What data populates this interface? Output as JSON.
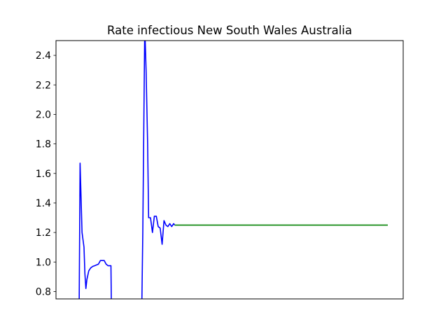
{
  "chart_data": {
    "type": "line",
    "title": "Rate infectious New South Wales Australia",
    "xlabel": "",
    "ylabel": "",
    "ylim": [
      0.75,
      2.5
    ],
    "xlim": [
      0,
      180
    ],
    "yticks": [
      0.8,
      1.0,
      1.2,
      1.4,
      1.6,
      1.8,
      2.0,
      2.2,
      2.4
    ],
    "ytick_labels": [
      "0.8",
      "1.0",
      "1.2",
      "1.4",
      "1.6",
      "1.8",
      "2.0",
      "2.2",
      "2.4"
    ],
    "grid": false,
    "series": [
      {
        "color": "#0000ff",
        "points": [
          [
            12,
            0.7
          ],
          [
            12.5,
            1.67
          ],
          [
            13.5,
            1.2
          ],
          [
            14.5,
            1.1
          ],
          [
            15,
            0.92
          ],
          [
            15.5,
            0.82
          ],
          [
            16,
            0.88
          ],
          [
            17,
            0.94
          ],
          [
            18,
            0.96
          ],
          [
            19,
            0.97
          ],
          [
            20,
            0.975
          ],
          [
            21,
            0.98
          ],
          [
            22,
            0.985
          ],
          [
            23,
            1.01
          ],
          [
            25,
            1.01
          ],
          [
            26,
            0.985
          ],
          [
            27,
            0.975
          ],
          [
            28,
            0.975
          ],
          [
            28.5,
            0.975
          ],
          [
            28.7,
            0.7
          ]
        ]
      },
      {
        "color": "#0000ff",
        "points": [
          [
            44.5,
            0.7
          ],
          [
            45,
            1.2
          ],
          [
            46,
            2.6
          ],
          [
            46.7,
            2.3
          ],
          [
            47.5,
            1.8
          ],
          [
            48,
            1.3
          ],
          [
            49,
            1.3
          ],
          [
            50,
            1.2
          ],
          [
            51,
            1.31
          ],
          [
            52,
            1.31
          ],
          [
            53,
            1.24
          ],
          [
            54,
            1.23
          ],
          [
            55,
            1.12
          ],
          [
            56,
            1.28
          ],
          [
            57,
            1.25
          ],
          [
            58,
            1.24
          ],
          [
            59,
            1.26
          ],
          [
            60,
            1.24
          ],
          [
            61,
            1.26
          ],
          [
            61.5,
            1.25
          ]
        ]
      },
      {
        "color": "#008000",
        "points": [
          [
            61.5,
            1.25
          ],
          [
            172,
            1.25
          ]
        ]
      }
    ]
  }
}
